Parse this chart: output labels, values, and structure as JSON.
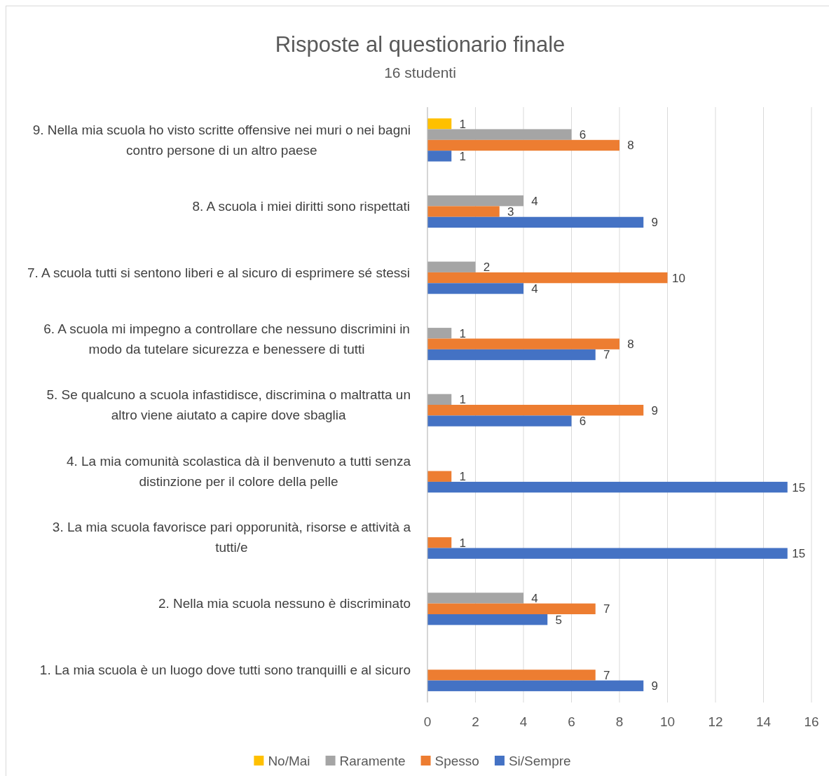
{
  "chart_data": {
    "type": "bar",
    "orientation": "horizontal",
    "title": "Risposte al questionario finale",
    "subtitle": "16 studenti",
    "categories": [
      "9. Nella mia scuola ho visto scritte offensive nei muri o nei bagni contro persone di un altro paese",
      "8. A scuola i miei diritti sono rispettati",
      "7. A scuola tutti si sentono liberi e al sicuro di esprimere sé stessi",
      "6. A scuola mi impegno a controllare che nessuno discrimini in modo da tutelare sicurezza e benessere di tutti",
      "5. Se qualcuno a scuola infastidisce, discrimina o maltratta un altro viene aiutato a capire dove sbaglia",
      "4. La mia comunità scolastica dà il benvenuto a tutti senza distinzione per il colore della pelle",
      "3. La mia scuola favorisce pari opporunità, risorse e attività a tutti/e",
      "2. Nella mia scuola nessuno è discriminato",
      "1. La mia scuola è un luogo dove tutti sono tranquilli e al sicuro"
    ],
    "series": [
      {
        "name": "No/Mai",
        "color": "#ffc000",
        "values": [
          1,
          null,
          null,
          null,
          null,
          null,
          null,
          null,
          null
        ]
      },
      {
        "name": "Raramente",
        "color": "#a5a5a5",
        "values": [
          6,
          4,
          2,
          1,
          1,
          null,
          null,
          4,
          null
        ]
      },
      {
        "name": "Spesso",
        "color": "#ed7d31",
        "values": [
          8,
          3,
          10,
          8,
          9,
          1,
          1,
          7,
          7
        ]
      },
      {
        "name": "Si/Sempre",
        "color": "#4472c4",
        "values": [
          1,
          9,
          4,
          7,
          6,
          15,
          15,
          5,
          9
        ]
      }
    ],
    "xlim": [
      0,
      16
    ],
    "xticks": [
      0,
      2,
      4,
      6,
      8,
      10,
      12,
      14,
      16
    ],
    "grid": "x",
    "legend": "bottom",
    "data_labels": true
  }
}
